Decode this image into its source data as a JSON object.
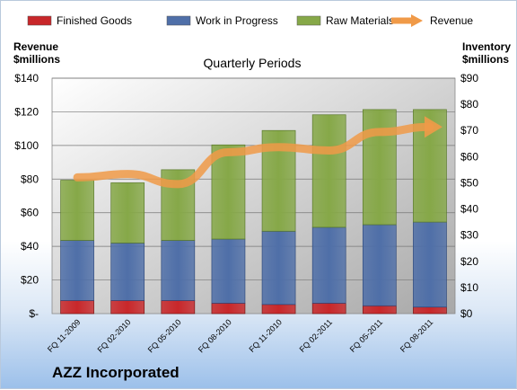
{
  "company": "AZZ Incorporated",
  "left_axis_title": [
    "Revenue",
    "$millions"
  ],
  "right_axis_title": [
    "Inventory",
    "$millions"
  ],
  "colors": {
    "finished_goods": "#c8272a",
    "work_in_progress": "#4f6fa8",
    "raw_materials": "#86a848",
    "revenue": "#f09a48"
  },
  "chart_data": {
    "type": "bar",
    "stacked": true,
    "title": "Quarterly Periods",
    "categories": [
      "FQ 11-2009",
      "FQ 02-2010",
      "FQ 05-2010",
      "FQ 08-2010",
      "FQ 11-2010",
      "FQ 02-2011",
      "FQ 05-2011",
      "FQ 08-2011"
    ],
    "series": [
      {
        "name": "Finished Goods",
        "axis": "right",
        "values": [
          5,
          5,
          5,
          4,
          3.5,
          4,
          3,
          2.5
        ]
      },
      {
        "name": "Work in Progress",
        "axis": "right",
        "values": [
          23,
          22,
          23,
          24.5,
          28,
          29,
          31,
          32.5
        ]
      },
      {
        "name": "Raw Materials",
        "axis": "right",
        "values": [
          23,
          23,
          27,
          36,
          38.5,
          43,
          44,
          43
        ]
      },
      {
        "name": "Revenue",
        "axis": "left",
        "type": "line",
        "values": [
          81,
          83,
          77,
          96,
          99,
          97,
          108,
          111
        ]
      }
    ],
    "left_axis": {
      "ticks": [
        "$-",
        "$20",
        "$40",
        "$60",
        "$80",
        "$100",
        "$120",
        "$140"
      ],
      "ylim": [
        0,
        140
      ]
    },
    "right_axis": {
      "ticks": [
        "$0",
        "$10",
        "$20",
        "$30",
        "$40",
        "$50",
        "$60",
        "$70",
        "$80",
        "$90"
      ],
      "ylim": [
        0,
        90
      ]
    },
    "legend_position": "top",
    "grid": true
  }
}
